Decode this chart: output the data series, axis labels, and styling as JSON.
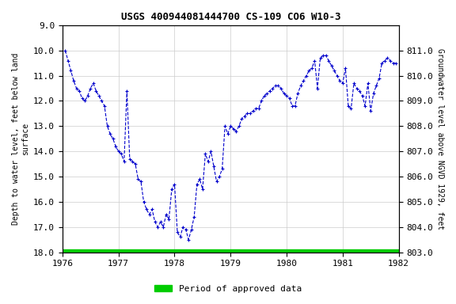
{
  "title": "USGS 400944081444700 CS-109 CO6 W10-3",
  "xlabel": "",
  "ylabel_left": "Depth to water level, feet below land\nsurface",
  "ylabel_right": "Groundwater level above NGVD 1929, feet",
  "ylim_left": [
    18.0,
    9.0
  ],
  "ylim_right": [
    803.0,
    812.0
  ],
  "xlim": [
    1976.0,
    1982.0
  ],
  "yticks_left": [
    9.0,
    10.0,
    11.0,
    12.0,
    13.0,
    14.0,
    15.0,
    16.0,
    17.0,
    18.0
  ],
  "yticks_right": [
    803.0,
    804.0,
    805.0,
    806.0,
    807.0,
    808.0,
    809.0,
    810.0,
    811.0
  ],
  "xticks": [
    1976,
    1977,
    1978,
    1979,
    1980,
    1981,
    1982
  ],
  "line_color": "#0000CC",
  "marker": "+",
  "linestyle": "--",
  "green_bar_color": "#00CC00",
  "legend_label": "Period of approved data",
  "background_color": "#ffffff",
  "grid_color": "#cccccc",
  "land_surface_elevation": 821.0,
  "data_x": [
    1976.05,
    1976.1,
    1976.15,
    1976.2,
    1976.25,
    1976.3,
    1976.35,
    1976.4,
    1976.45,
    1976.5,
    1976.55,
    1976.6,
    1976.65,
    1976.7,
    1976.75,
    1976.8,
    1976.85,
    1976.9,
    1976.95,
    1977.0,
    1977.05,
    1977.1,
    1977.15,
    1977.2,
    1977.25,
    1977.3,
    1977.35,
    1977.4,
    1977.45,
    1977.5,
    1977.55,
    1977.6,
    1977.65,
    1977.7,
    1977.75,
    1977.8,
    1977.85,
    1977.9,
    1977.95,
    1978.0,
    1978.05,
    1978.1,
    1978.15,
    1978.2,
    1978.25,
    1978.3,
    1978.35,
    1978.4,
    1978.45,
    1978.5,
    1978.55,
    1978.6,
    1978.65,
    1978.7,
    1978.75,
    1978.8,
    1978.85,
    1978.9,
    1978.95,
    1979.0,
    1979.05,
    1979.1,
    1979.15,
    1979.2,
    1979.25,
    1979.3,
    1979.35,
    1979.4,
    1979.45,
    1979.5,
    1979.55,
    1979.6,
    1979.65,
    1979.7,
    1979.75,
    1979.8,
    1979.85,
    1979.9,
    1979.95,
    1980.0,
    1980.05,
    1980.1,
    1980.15,
    1980.2,
    1980.25,
    1980.3,
    1980.35,
    1980.4,
    1980.45,
    1980.5,
    1980.55,
    1980.6,
    1980.65,
    1980.7,
    1980.75,
    1980.8,
    1980.85,
    1980.9,
    1980.95,
    1981.0,
    1981.05,
    1981.1,
    1981.15,
    1981.2,
    1981.25,
    1981.3,
    1981.35,
    1981.4,
    1981.45,
    1981.5,
    1981.55,
    1981.6,
    1981.65,
    1981.7,
    1981.75,
    1981.8,
    1981.85,
    1981.9,
    1981.95
  ],
  "data_depth": [
    10.0,
    10.4,
    10.8,
    11.2,
    11.5,
    11.6,
    11.9,
    12.0,
    11.8,
    11.5,
    11.3,
    11.6,
    11.8,
    12.0,
    12.2,
    13.0,
    13.3,
    13.5,
    13.8,
    14.0,
    14.1,
    14.4,
    11.6,
    14.3,
    14.4,
    14.5,
    15.1,
    15.2,
    16.0,
    16.3,
    16.5,
    16.3,
    16.8,
    17.0,
    16.8,
    17.0,
    16.5,
    16.7,
    15.5,
    15.3,
    17.2,
    17.4,
    17.0,
    17.1,
    17.5,
    17.1,
    16.6,
    15.3,
    15.1,
    15.5,
    14.1,
    14.4,
    14.0,
    14.6,
    15.2,
    15.0,
    14.7,
    13.0,
    13.3,
    13.0,
    13.1,
    13.2,
    13.0,
    12.7,
    12.6,
    12.5,
    12.5,
    12.4,
    12.3,
    12.3,
    12.0,
    11.8,
    11.7,
    11.6,
    11.5,
    11.4,
    11.4,
    11.5,
    11.7,
    11.8,
    11.9,
    12.2,
    12.2,
    11.7,
    11.4,
    11.2,
    11.0,
    10.8,
    10.7,
    10.4,
    11.5,
    10.3,
    10.2,
    10.2,
    10.4,
    10.6,
    10.8,
    11.0,
    11.2,
    11.3,
    10.7,
    12.2,
    12.3,
    11.3,
    11.5,
    11.6,
    11.8,
    12.2,
    11.3,
    12.4,
    11.7,
    11.4,
    11.1,
    10.5,
    10.4,
    10.3,
    10.4,
    10.5,
    10.5
  ]
}
